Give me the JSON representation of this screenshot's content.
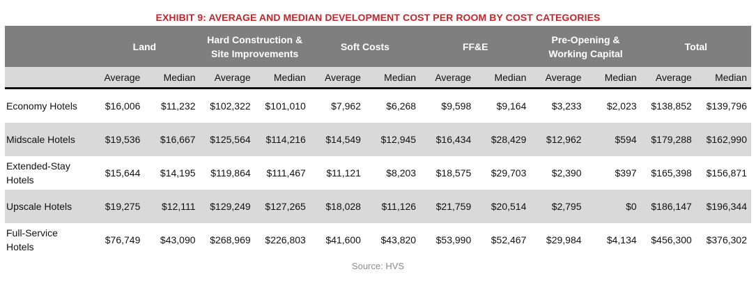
{
  "title": "EXHIBIT 9: AVERAGE AND MEDIAN DEVELOPMENT COST PER ROOM BY COST CATEGORIES",
  "table": {
    "groups": [
      "Land",
      "Hard Construction &\nSite Improvements",
      "Soft Costs",
      "FF&E",
      "Pre-Opening &\nWorking Capital",
      "Total"
    ],
    "sub_headers": [
      "Average",
      "Median"
    ],
    "rows": [
      {
        "label": "Economy Hotels",
        "values": [
          "$16,006",
          "$11,232",
          "$102,322",
          "$101,010",
          "$7,962",
          "$6,268",
          "$9,598",
          "$9,164",
          "$3,233",
          "$2,023",
          "$138,852",
          "$139,796"
        ]
      },
      {
        "label": "Midscale Hotels",
        "values": [
          "$19,536",
          "$16,667",
          "$125,564",
          "$114,216",
          "$14,549",
          "$12,945",
          "$16,434",
          "$28,429",
          "$12,962",
          "$594",
          "$179,288",
          "$162,990"
        ]
      },
      {
        "label": "Extended-Stay Hotels",
        "values": [
          "$15,644",
          "$14,195",
          "$119,864",
          "$111,467",
          "$11,121",
          "$8,203",
          "$18,575",
          "$29,703",
          "$2,390",
          "$397",
          "$165,398",
          "$156,871"
        ]
      },
      {
        "label": "Upscale Hotels",
        "values": [
          "$19,275",
          "$12,111",
          "$129,249",
          "$127,265",
          "$18,028",
          "$11,126",
          "$21,759",
          "$20,514",
          "$2,795",
          "$0",
          "$186,147",
          "$196,344"
        ]
      },
      {
        "label": "Full-Service Hotels",
        "values": [
          "$76,749",
          "$43,090",
          "$268,969",
          "$226,803",
          "$41,600",
          "$43,820",
          "$53,990",
          "$52,467",
          "$29,984",
          "$4,134",
          "$456,300",
          "$376,302"
        ]
      }
    ]
  },
  "source": "Source: HVS",
  "colors": {
    "title": "#c0262b",
    "header_bg": "#7f7f7f",
    "subheader_bg": "#d9d9d9",
    "band_bg": "#d9d9d9",
    "source_text": "#8c8c8c"
  }
}
